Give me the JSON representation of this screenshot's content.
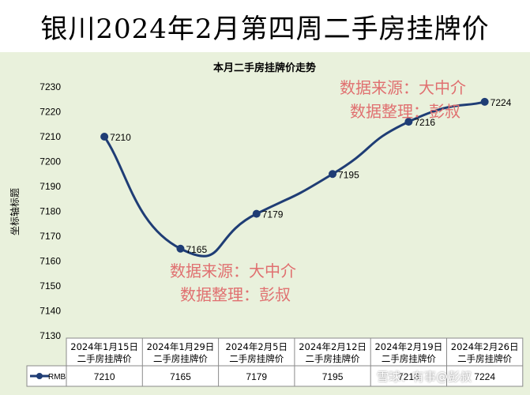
{
  "banner_title": "银川2024年2月第四周二手房挂牌价",
  "watermark": "雪球：有事@彭叔",
  "chart_data": {
    "type": "line",
    "title": "本月二手房挂牌价走势",
    "ylabel": "坐标轴标题",
    "xlabel": "",
    "ylim": [
      7130,
      7230
    ],
    "ytick_step": 10,
    "categories": [
      "2024年1月15日二手房挂牌价",
      "2024年1月29日二手房挂牌价",
      "2024年2月5日二手房挂牌价",
      "2024年2月12日二手房挂牌价",
      "2024年2月19日二手房挂牌价",
      "2024年2月26日二手房挂牌价"
    ],
    "category_lines": [
      [
        "2024年1月15日",
        "二手房挂牌价"
      ],
      [
        "2024年1月29日",
        "二手房挂牌价"
      ],
      [
        "2024年2月5日",
        "二手房挂牌价"
      ],
      [
        "2024年2月12日",
        "二手房挂牌价"
      ],
      [
        "2024年2月19日",
        "二手房挂牌价"
      ],
      [
        "2024年2月26日",
        "二手房挂牌价"
      ]
    ],
    "series": [
      {
        "name": "RMB",
        "values": [
          7210,
          7165,
          7179,
          7195,
          7216,
          7224
        ]
      }
    ],
    "line_color": "#1f3d75",
    "grid": false,
    "data_table": true,
    "annotations": [
      {
        "lines": [
          "数据来源：大中介",
          "数据整理：彭叔"
        ],
        "color": "#e07070"
      },
      {
        "lines": [
          "数据来源：大中介",
          "数据整理：彭叔"
        ],
        "color": "#e07070"
      }
    ]
  }
}
